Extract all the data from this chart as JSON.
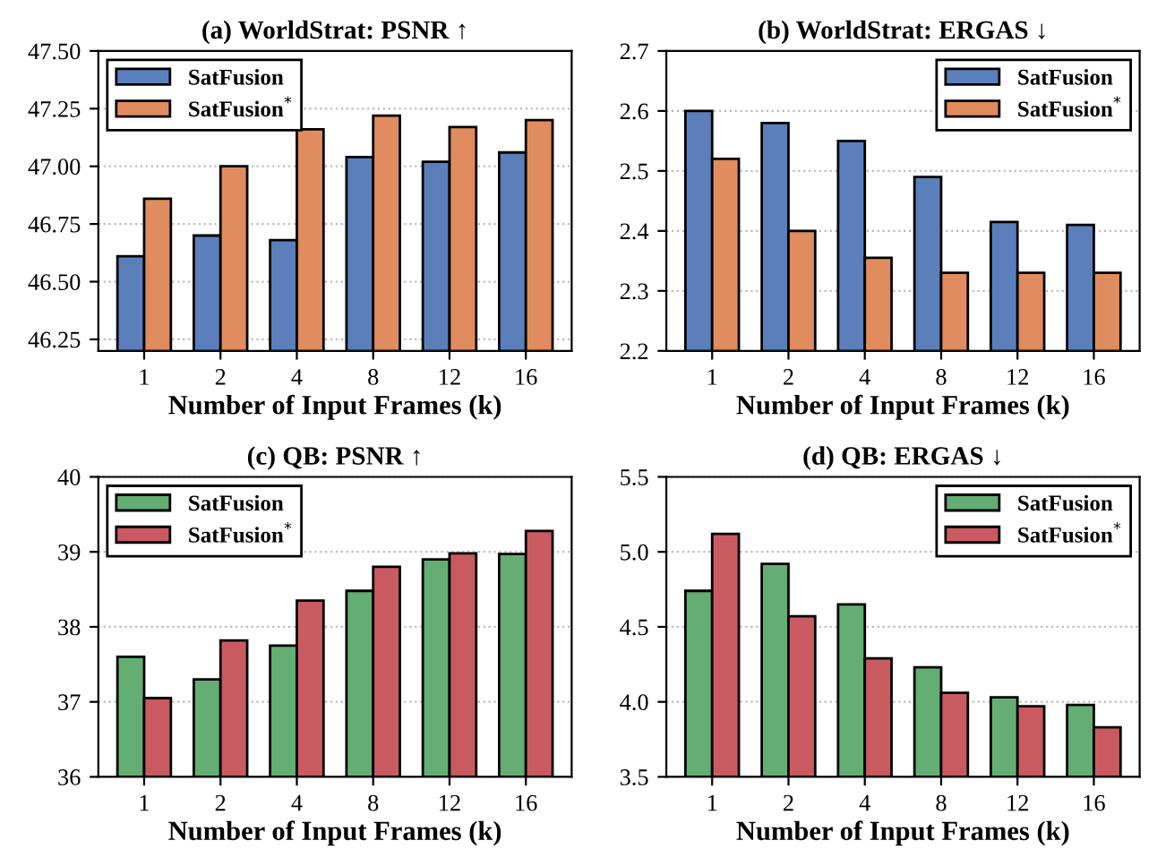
{
  "chart_data": [
    {
      "type": "bar",
      "title": "(a) WorldStrat: PSNR ↑",
      "xlabel": "Number of Input Frames (k)",
      "categories": [
        "1",
        "2",
        "4",
        "8",
        "12",
        "16"
      ],
      "series": [
        {
          "name": "SatFusion",
          "color": "#5b7fbb",
          "values": [
            46.61,
            46.7,
            46.68,
            47.04,
            47.02,
            47.06
          ]
        },
        {
          "name": "SatFusion$^{*}$",
          "color": "#e08c5f",
          "values": [
            46.86,
            47.0,
            47.16,
            47.22,
            47.17,
            47.2
          ]
        }
      ],
      "ylim": [
        46.2,
        47.5
      ],
      "yticks": [
        {
          "value": 46.25,
          "label": "46.25"
        },
        {
          "value": 46.5,
          "label": "46.50"
        },
        {
          "value": 46.75,
          "label": "46.75"
        },
        {
          "value": 47.0,
          "label": "47.00"
        },
        {
          "value": 47.25,
          "label": "47.25"
        },
        {
          "value": 47.5,
          "label": "47.50"
        }
      ],
      "grid": "y",
      "legend": "top left"
    },
    {
      "type": "bar",
      "title": "(b) WorldStrat: ERGAS ↓",
      "xlabel": "Number of Input Frames (k)",
      "categories": [
        "1",
        "2",
        "4",
        "8",
        "12",
        "16"
      ],
      "series": [
        {
          "name": "SatFusion",
          "color": "#5b7fbb",
          "values": [
            2.6,
            2.58,
            2.55,
            2.49,
            2.415,
            2.41
          ]
        },
        {
          "name": "SatFusion$^{*}$",
          "color": "#e08c5f",
          "values": [
            2.52,
            2.4,
            2.355,
            2.33,
            2.33,
            2.33
          ]
        }
      ],
      "ylim": [
        2.2,
        2.7
      ],
      "yticks": [
        2.2,
        2.3,
        2.4,
        2.5,
        2.6,
        2.7
      ],
      "grid": "y",
      "legend": "top right"
    },
    {
      "type": "bar",
      "title": "(c) QB: PSNR ↑",
      "xlabel": "Number of Input Frames (k)",
      "categories": [
        "1",
        "2",
        "4",
        "8",
        "12",
        "16"
      ],
      "series": [
        {
          "name": "SatFusion",
          "color": "#64ad73",
          "values": [
            37.6,
            37.3,
            37.75,
            38.48,
            38.9,
            38.97
          ]
        },
        {
          "name": "SatFusion$^{*}$",
          "color": "#c95b60",
          "values": [
            37.05,
            37.82,
            38.35,
            38.8,
            38.98,
            39.28
          ]
        }
      ],
      "ylim": [
        36,
        40
      ],
      "yticks": [
        36,
        37,
        38,
        39,
        40
      ],
      "grid": "y",
      "legend": "top left"
    },
    {
      "type": "bar",
      "title": "(d) QB: ERGAS ↓",
      "xlabel": "Number of Input Frames (k)",
      "categories": [
        "1",
        "2",
        "4",
        "8",
        "12",
        "16"
      ],
      "series": [
        {
          "name": "SatFusion",
          "color": "#64ad73",
          "values": [
            4.74,
            4.92,
            4.65,
            4.23,
            4.03,
            3.98
          ]
        },
        {
          "name": "SatFusion$^{*}$",
          "color": "#c95b60",
          "values": [
            5.12,
            4.57,
            4.29,
            4.06,
            3.97,
            3.83
          ]
        }
      ],
      "ylim": [
        3.5,
        5.5
      ],
      "yticks": [
        3.5,
        {
          "value": 4.0,
          "label": "4.0"
        },
        4.5,
        {
          "value": 5.0,
          "label": "5.0"
        },
        5.5
      ],
      "grid": "y",
      "legend": "top right"
    }
  ]
}
